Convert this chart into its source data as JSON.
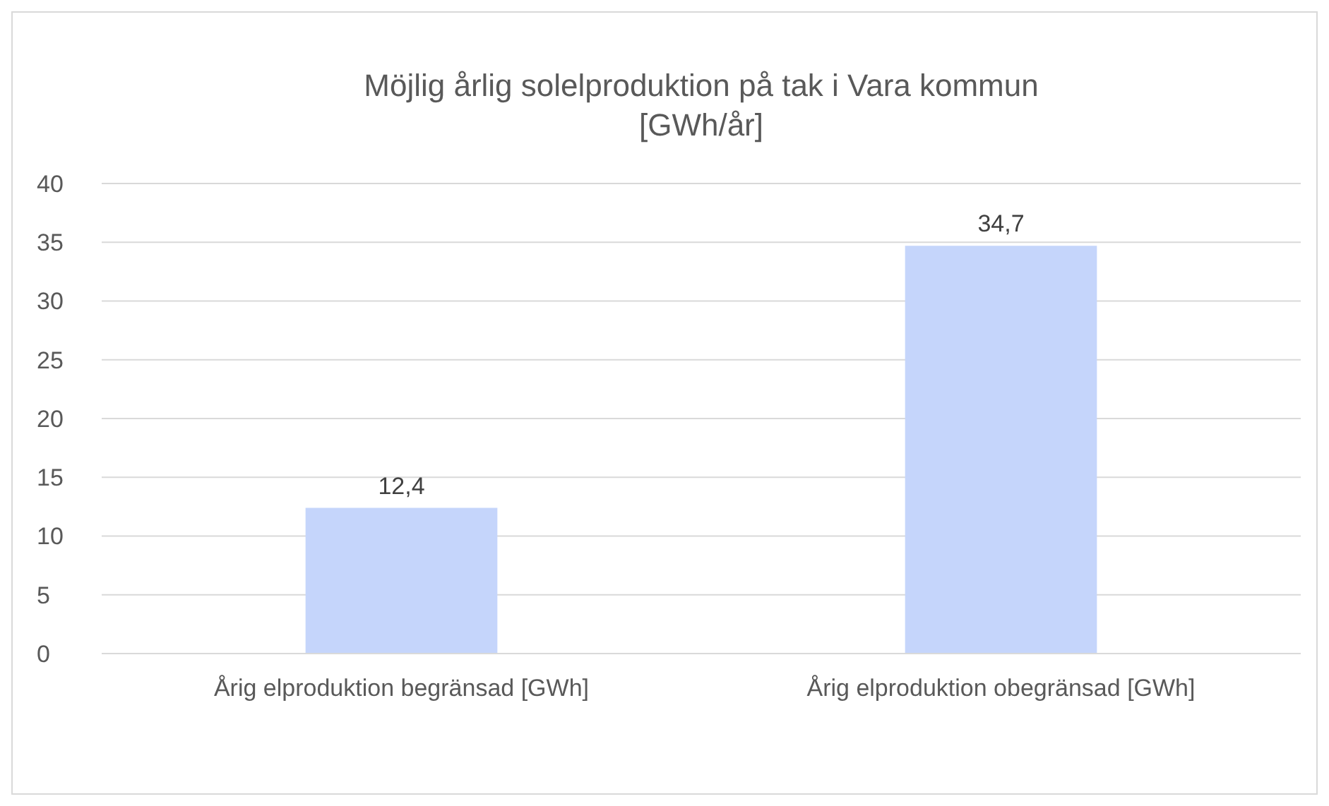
{
  "chart_data": {
    "type": "bar",
    "title": "Möjlig årlig solelproduktion på tak i Vara kommun\n[GWh/år]",
    "categories": [
      "Årig elproduktion begränsad [GWh]",
      "Årig elproduktion obegränsad [GWh]"
    ],
    "values": [
      12.4,
      34.7
    ],
    "value_labels": [
      "12,4",
      "34,7"
    ],
    "color": "#c5d5fb",
    "ylim": [
      0,
      40
    ],
    "yticks": [
      0,
      5,
      10,
      15,
      20,
      25,
      30,
      35,
      40
    ],
    "grid": "y"
  }
}
